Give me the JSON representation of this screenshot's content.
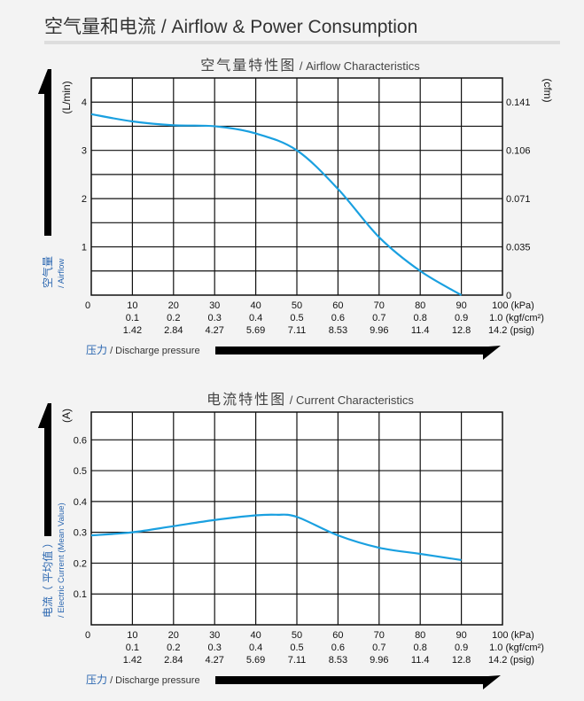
{
  "header": {
    "title": "空气量和电流 / Airflow & Power Consumption"
  },
  "colors": {
    "curve": "#1aa0e0",
    "grid": "#111111",
    "background": "#f3f3f3"
  },
  "chart_data": [
    {
      "type": "line",
      "title_cn": "空气量特性图",
      "title_en": "/ Airflow Characteristics",
      "ylabel_cn": "空气量",
      "ylabel_en": "/ Airflow",
      "yunit": "(L/min)",
      "y2unit": "(cfm)",
      "xlabel_cn": "压力",
      "xlabel_en": "/ Discharge pressure",
      "xlim": [
        0,
        100
      ],
      "ylim": [
        0,
        4.5
      ],
      "grid": true,
      "yticks": [
        "1",
        "2",
        "3",
        "4"
      ],
      "y2ticks": [
        "0",
        "0.035",
        "0.071",
        "0.106",
        "0.141"
      ],
      "xticks_kpa": [
        "0",
        "10",
        "20",
        "30",
        "40",
        "50",
        "60",
        "70",
        "80",
        "90",
        "100 (kPa)"
      ],
      "xticks_kgf": [
        "0.1",
        "0.2",
        "0.3",
        "0.4",
        "0.5",
        "0.6",
        "0.7",
        "0.8",
        "0.9",
        "1.0 (kgf/cm²)"
      ],
      "xticks_psig": [
        "1.42",
        "2.84",
        "4.27",
        "5.69",
        "7.11",
        "8.53",
        "9.96",
        "11.4",
        "12.8",
        "14.2 (psig)"
      ],
      "x": [
        0,
        10,
        20,
        30,
        40,
        50,
        60,
        70,
        80,
        90
      ],
      "y": [
        3.75,
        3.6,
        3.52,
        3.5,
        3.35,
        3.0,
        2.2,
        1.2,
        0.5,
        0
      ]
    },
    {
      "type": "line",
      "title_cn": "电流特性图",
      "title_en": "/ Current Characteristics",
      "ylabel_cn": "电流（ 平均值 ）",
      "ylabel_en": "/ Electric Current (Mean Value)",
      "yunit": "(A)",
      "xlabel_cn": "压力",
      "xlabel_en": "/ Discharge pressure",
      "xlim": [
        0,
        100
      ],
      "ylim": [
        0,
        0.69
      ],
      "grid": true,
      "yticks": [
        "0.1",
        "0.2",
        "0.3",
        "0.4",
        "0.5",
        "0.6"
      ],
      "xticks_kpa": [
        "0",
        "10",
        "20",
        "30",
        "40",
        "50",
        "60",
        "70",
        "80",
        "90",
        "100 (kPa)"
      ],
      "xticks_kgf": [
        "0.1",
        "0.2",
        "0.3",
        "0.4",
        "0.5",
        "0.6",
        "0.7",
        "0.8",
        "0.9",
        "1.0 (kgf/cm²)"
      ],
      "xticks_psig": [
        "1.42",
        "2.84",
        "4.27",
        "5.69",
        "7.11",
        "8.53",
        "9.96",
        "11.4",
        "12.8",
        "14.2 (psig)"
      ],
      "x": [
        0,
        10,
        20,
        30,
        40,
        45,
        50,
        60,
        70,
        80,
        90
      ],
      "y": [
        0.29,
        0.3,
        0.32,
        0.34,
        0.355,
        0.357,
        0.35,
        0.29,
        0.25,
        0.23,
        0.21
      ]
    }
  ]
}
